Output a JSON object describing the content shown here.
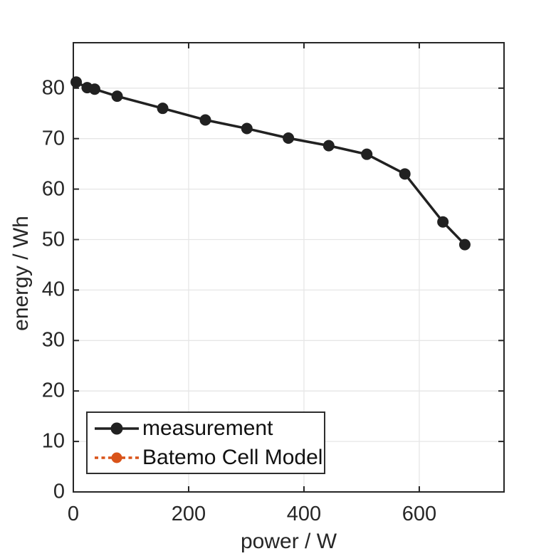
{
  "chart_data": {
    "type": "line",
    "title": "",
    "xlabel": "power / W",
    "ylabel": "energy / Wh",
    "xlim": [
      0,
      747
    ],
    "ylim": [
      0,
      89
    ],
    "xticks": [
      0,
      200,
      400,
      600
    ],
    "yticks": [
      0,
      10,
      20,
      30,
      40,
      50,
      60,
      70,
      80
    ],
    "grid": true,
    "grid_color": "#e6e6e6",
    "axis_color": "#262626",
    "tick_label_color": "#262626",
    "legend_position": "inside-bottom-left",
    "series": [
      {
        "name": "measurement",
        "color": "#212121",
        "line_style": "solid",
        "marker": "circle",
        "points": [
          [
            5,
            81.2
          ],
          [
            24,
            80.1
          ],
          [
            37,
            79.8
          ],
          [
            76,
            78.4
          ],
          [
            155,
            76.0
          ],
          [
            229,
            73.7
          ],
          [
            301,
            72.0
          ],
          [
            373,
            70.1
          ],
          [
            443,
            68.6
          ],
          [
            509,
            66.9
          ],
          [
            575,
            63.0
          ],
          [
            641,
            53.5
          ],
          [
            679,
            49.0
          ]
        ]
      },
      {
        "name": "Batemo Cell Model",
        "color": "#D95319",
        "line_style": "dotted",
        "marker": "circle",
        "points": []
      }
    ]
  },
  "legend": {
    "items": [
      {
        "label": "measurement",
        "color": "#212121",
        "line_style": "solid"
      },
      {
        "label": "Batemo Cell Model",
        "color": "#D95319",
        "line_style": "dotted"
      }
    ]
  }
}
